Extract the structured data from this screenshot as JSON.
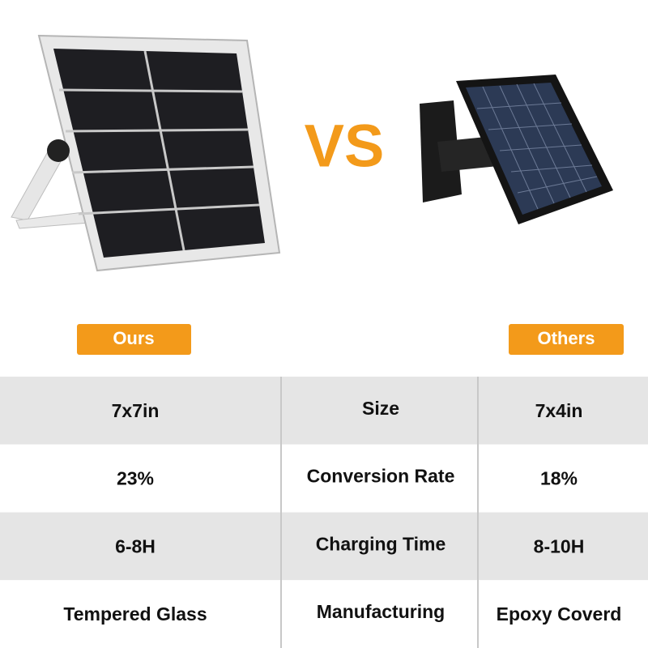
{
  "vs_label": "VS",
  "headers": {
    "ours": "Ours",
    "others": "Others"
  },
  "table": {
    "rows": [
      [
        "7x7in",
        "Size",
        "7x4in"
      ],
      [
        "23%",
        "Conversion Rate",
        "18%"
      ],
      [
        "6-8H",
        "Charging Time",
        "8-10H"
      ],
      [
        "Tempered Glass",
        "Manufacturing",
        "Epoxy Coverd"
      ]
    ]
  }
}
